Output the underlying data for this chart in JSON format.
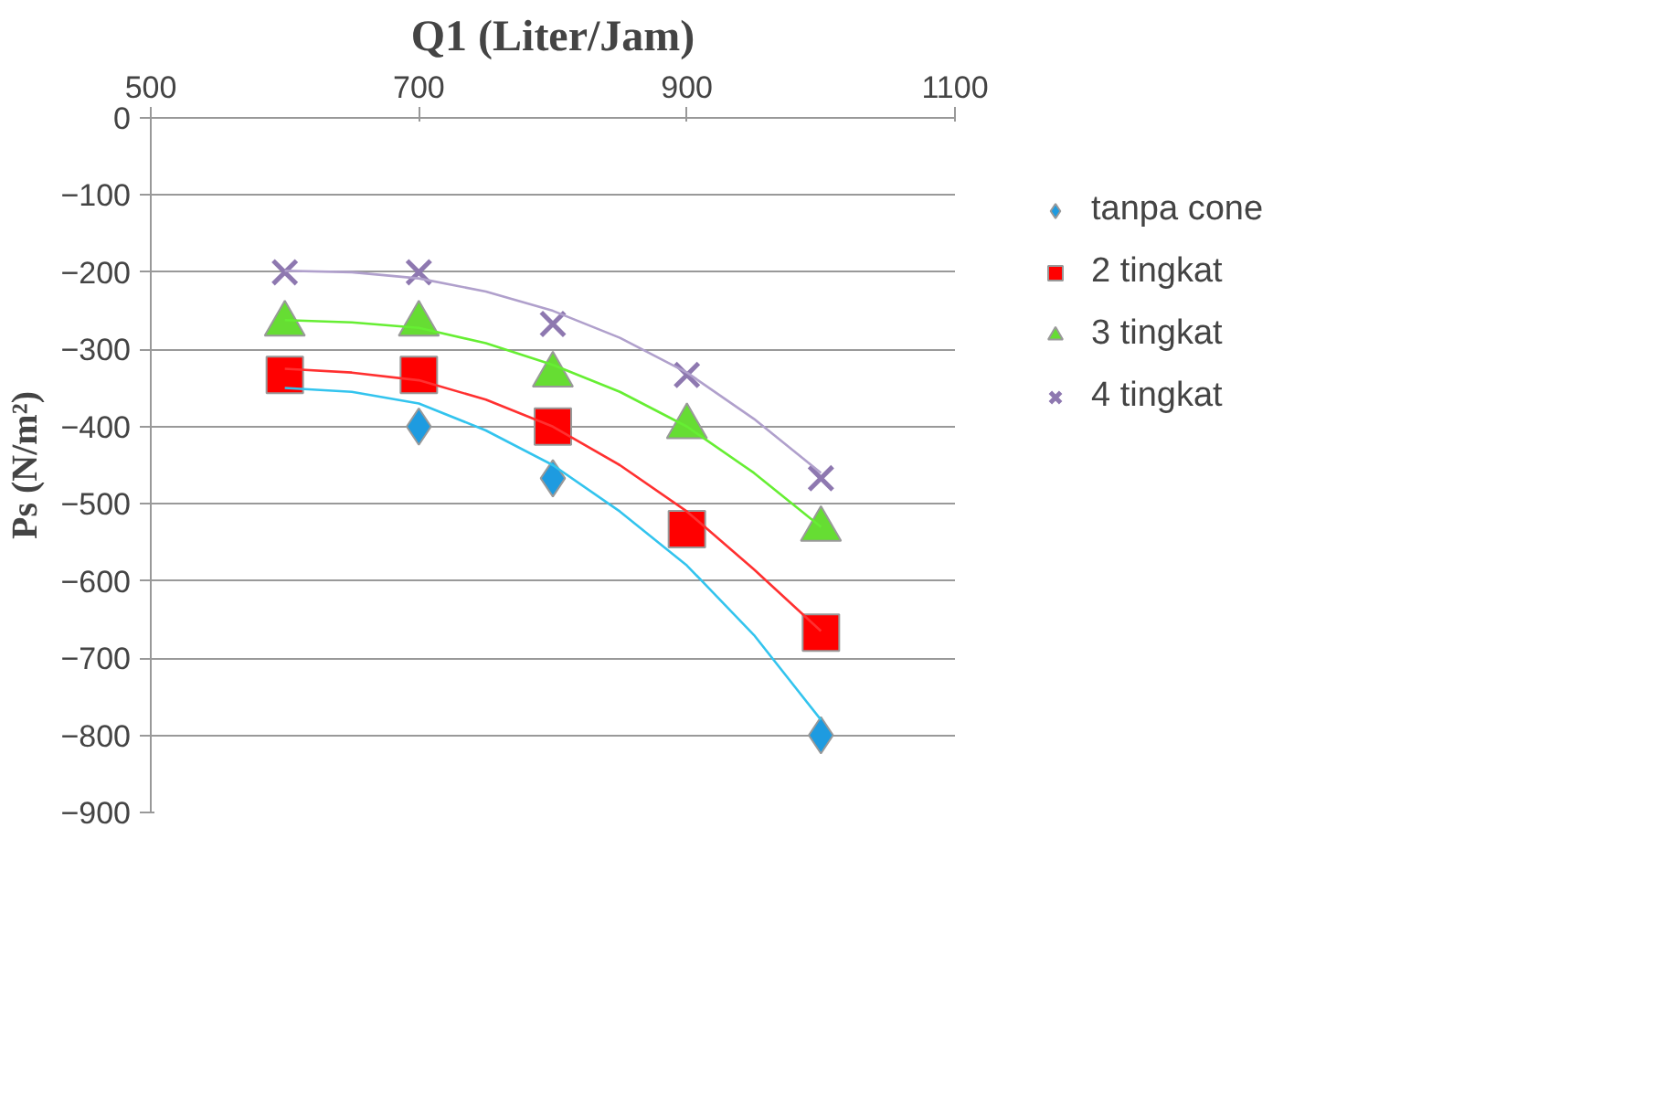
{
  "chart_data": {
    "type": "scatter",
    "title": "Q1 (Liter/Jam)",
    "ylabel": "Ps (N/m²)",
    "x": [
      600,
      700,
      800,
      900,
      1000
    ],
    "xlim": [
      500,
      1100
    ],
    "xticks": [
      500,
      700,
      900,
      1100
    ],
    "ylim": [
      -900,
      0
    ],
    "yticks": [
      0,
      -100,
      -200,
      -300,
      -400,
      -500,
      -600,
      -700,
      -800,
      -900
    ],
    "grid": "y",
    "legend": "right",
    "series": [
      {
        "name": "tanpa cone",
        "color": "#1e9be0",
        "marker": "diamond",
        "values": [
          null,
          -400,
          -467,
          null,
          -800
        ]
      },
      {
        "name": "2 tingkat",
        "color": "#ff0000",
        "marker": "square",
        "values": [
          -333,
          -333,
          -400,
          -533,
          -667
        ]
      },
      {
        "name": "3 tingkat",
        "color": "#66dd33",
        "marker": "triangle",
        "values": [
          -267,
          -267,
          -333,
          -400,
          -533
        ]
      },
      {
        "name": "4 tingkat",
        "color": "#8e78b0",
        "marker": "cross",
        "values": [
          -200,
          -200,
          -267,
          -333,
          -467
        ]
      },
      {
        "type": "line",
        "color": "#33c4ee",
        "x": [
          600,
          650,
          700,
          750,
          800,
          850,
          900,
          950,
          1000
        ],
        "values": [
          -350,
          -355,
          -370,
          -405,
          -450,
          -510,
          -580,
          -670,
          -780
        ]
      },
      {
        "type": "line",
        "color": "#ff3030",
        "x": [
          600,
          650,
          700,
          750,
          800,
          850,
          900,
          950,
          1000
        ],
        "values": [
          -325,
          -330,
          -340,
          -365,
          -400,
          -450,
          -510,
          -585,
          -665
        ]
      },
      {
        "type": "line",
        "color": "#66ee33",
        "x": [
          600,
          650,
          700,
          750,
          800,
          850,
          900,
          950,
          1000
        ],
        "values": [
          -262,
          -265,
          -272,
          -292,
          -320,
          -355,
          -400,
          -460,
          -530
        ]
      },
      {
        "type": "line",
        "color": "#b0a0cc",
        "x": [
          600,
          650,
          700,
          750,
          800,
          850,
          900,
          950,
          1000
        ],
        "values": [
          -198,
          -200,
          -208,
          -225,
          -250,
          -285,
          -330,
          -390,
          -460
        ]
      }
    ]
  }
}
